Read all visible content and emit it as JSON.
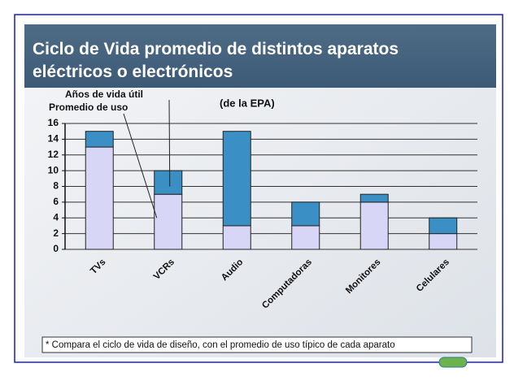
{
  "chart_data": {
    "type": "stacked_bar",
    "title": "Ciclo de Vida promedio de distintos aparatos eléctricos o electrónicos",
    "subtitle": "(de la EPA)",
    "categories": [
      "TVs",
      "VCRs",
      "Audio",
      "Computadoras",
      "Monitores",
      "Celulares"
    ],
    "series": [
      {
        "name": "Promedio de uso",
        "color": "#d8d6f6",
        "values": [
          13,
          7,
          3,
          3,
          6,
          2
        ]
      },
      {
        "name": "Años de vida útil",
        "color": "#3a8fc4",
        "values": [
          2,
          3,
          12,
          3,
          1,
          2
        ]
      }
    ],
    "ylim": [
      0,
      16
    ],
    "yticks": [
      0,
      2,
      4,
      6,
      8,
      10,
      12,
      14,
      16
    ],
    "grid": true,
    "footnote": "* Compara el ciclo de vida de diseño, con el promedio de uso típico de cada aparato"
  }
}
